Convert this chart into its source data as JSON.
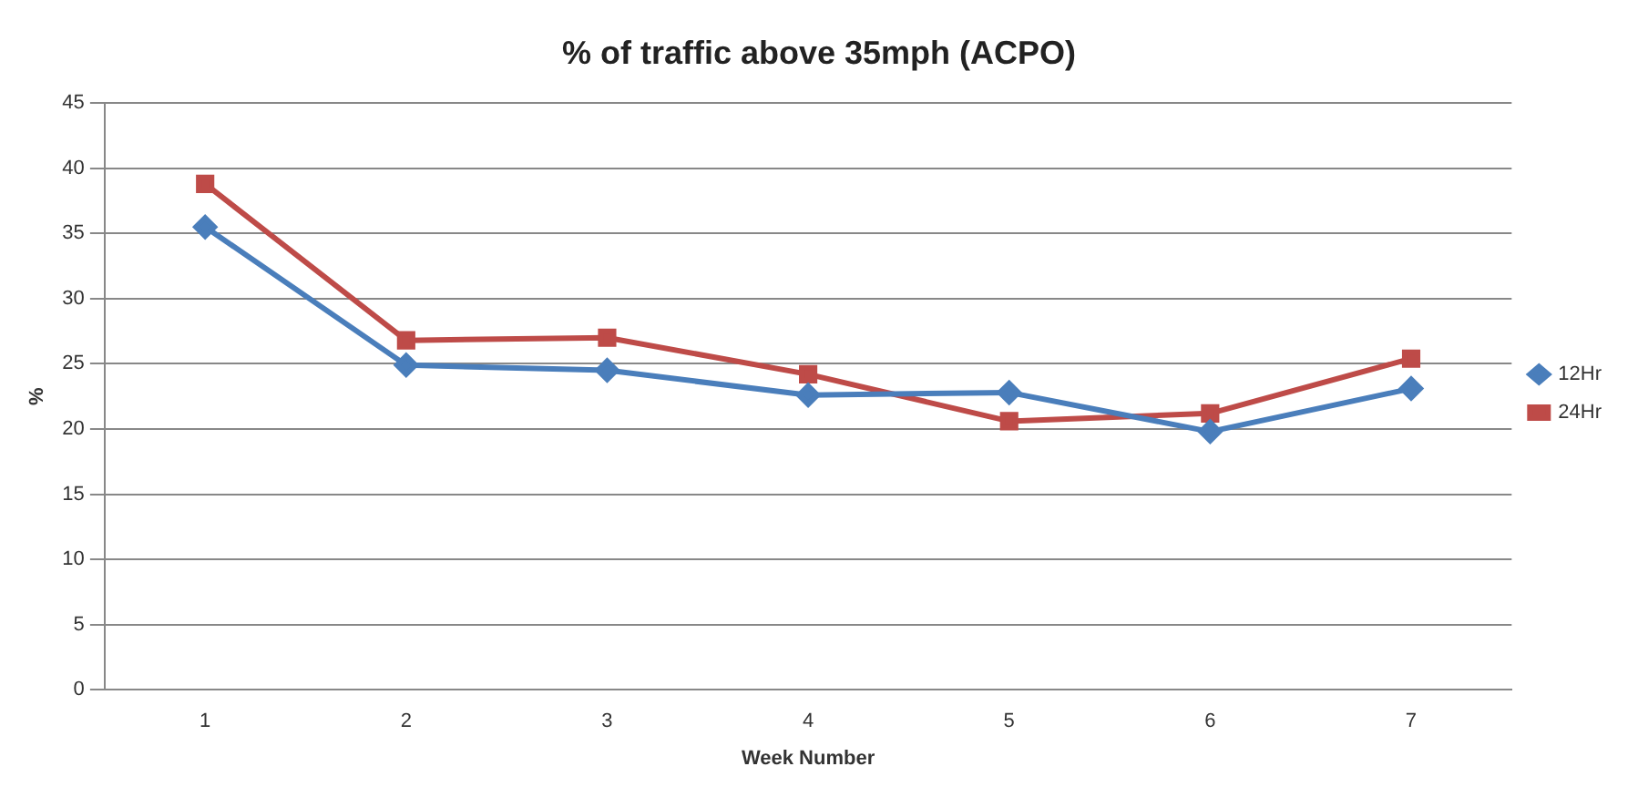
{
  "chart_data": {
    "type": "line",
    "title": "% of traffic above 35mph (ACPO)",
    "xlabel": "Week Number",
    "ylabel": "%",
    "categories": [
      "1",
      "2",
      "3",
      "4",
      "5",
      "6",
      "7"
    ],
    "series": [
      {
        "name": "12Hr",
        "color": "#4a7ebb",
        "marker": "diamond",
        "values": [
          35.5,
          24.9,
          24.5,
          22.6,
          22.8,
          19.8,
          23.1
        ]
      },
      {
        "name": "24Hr",
        "color": "#be4b48",
        "marker": "square",
        "values": [
          38.8,
          26.8,
          27.0,
          24.2,
          20.6,
          21.2,
          25.4
        ]
      }
    ],
    "ylim": [
      0,
      45
    ],
    "yticks": [
      0,
      5,
      10,
      15,
      20,
      25,
      30,
      35,
      40,
      45
    ],
    "grid": "y",
    "legend": "right",
    "line_style": "solid"
  }
}
